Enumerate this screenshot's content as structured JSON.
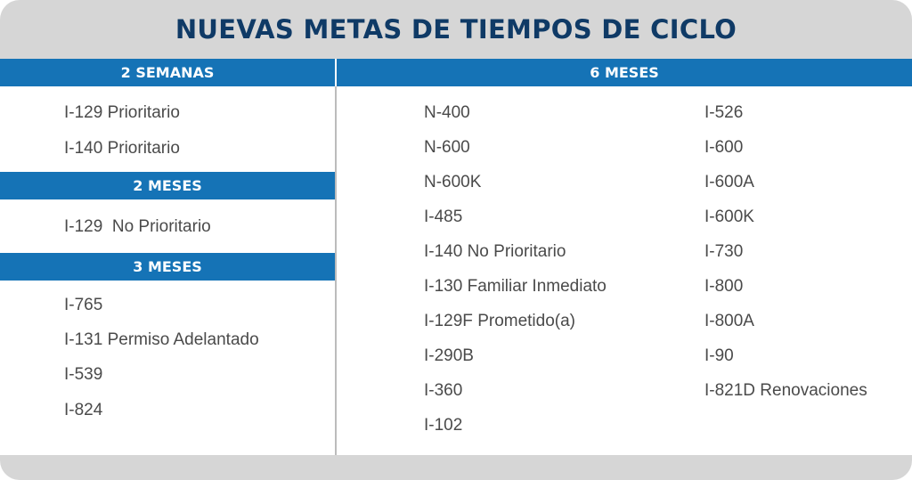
{
  "title": "NUEVAS METAS DE TIEMPOS DE CICLO",
  "sections": {
    "two_weeks": {
      "header": "2 SEMANAS",
      "items": [
        "I-129 Prioritario",
        "I-140 Prioritario"
      ]
    },
    "two_months": {
      "header": "2 MESES",
      "items": [
        "I-129  No Prioritario"
      ]
    },
    "three_months": {
      "header": "3 MESES",
      "items": [
        "I-765",
        "I-131 Permiso Adelantado",
        "I-539",
        "I-824"
      ]
    },
    "six_months": {
      "header": "6 MESES",
      "column_1": [
        "N-400",
        "N-600",
        "N-600K",
        "I-485",
        "I-140 No Prioritario",
        "I-130 Familiar Inmediato",
        "I-129F Prometido(a)",
        "I-290B",
        "I-360",
        "I-102"
      ],
      "column_2": [
        "I-526",
        "I-600",
        "I-600A",
        "I-600K",
        "I-730",
        "I-800",
        "I-800A",
        "I-90",
        "I-821D Renovaciones"
      ]
    }
  },
  "colors": {
    "title_text": "#0f3a66",
    "header_bar": "#1573b6",
    "frame": "#d6d6d6",
    "item_text": "#4a4a4a"
  }
}
